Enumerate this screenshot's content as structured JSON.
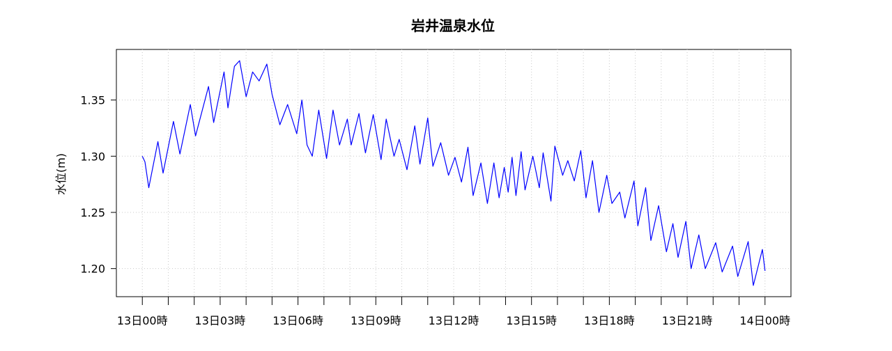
{
  "chart_data": {
    "type": "line",
    "title": "岩井温泉水位",
    "xlabel": "",
    "ylabel": "水位(m)",
    "ylim": [
      1.175,
      1.395
    ],
    "xlim": [
      -1,
      25
    ],
    "yticks": [
      1.2,
      1.25,
      1.3,
      1.35
    ],
    "ytick_labels": [
      "1.20",
      "1.25",
      "1.30",
      "1.35"
    ],
    "xticks": [
      0,
      3,
      6,
      9,
      12,
      15,
      18,
      21,
      24
    ],
    "xtick_labels": [
      "13日00時",
      "13日03時",
      "13日06時",
      "13日09時",
      "13日12時",
      "13日15時",
      "13日18時",
      "13日21時",
      "14日00時"
    ],
    "minor_xticks": [
      1,
      2,
      4,
      5,
      7,
      8,
      10,
      11,
      13,
      14,
      16,
      17,
      19,
      20,
      22,
      23
    ],
    "grid": true,
    "series": [
      {
        "color": "#0000ff",
        "x": [
          0,
          0.1,
          0.25,
          0.6,
          0.8,
          1.2,
          1.45,
          1.85,
          2.05,
          2.55,
          2.75,
          3.15,
          3.3,
          3.55,
          3.75,
          4.0,
          4.25,
          4.5,
          4.8,
          5.0,
          5.3,
          5.6,
          5.95,
          6.15,
          6.35,
          6.55,
          6.8,
          7.1,
          7.35,
          7.6,
          7.9,
          8.05,
          8.35,
          8.6,
          8.9,
          9.2,
          9.4,
          9.7,
          9.9,
          10.2,
          10.5,
          10.7,
          11.0,
          11.2,
          11.5,
          11.8,
          12.05,
          12.3,
          12.55,
          12.75,
          13.05,
          13.3,
          13.55,
          13.75,
          13.95,
          14.1,
          14.25,
          14.4,
          14.6,
          14.75,
          15.05,
          15.3,
          15.45,
          15.75,
          15.9,
          16.2,
          16.4,
          16.65,
          16.9,
          17.1,
          17.35,
          17.6,
          17.9,
          18.1,
          18.4,
          18.6,
          18.95,
          19.1,
          19.4,
          19.6,
          19.9,
          20.2,
          20.45,
          20.65,
          20.95,
          21.15,
          21.45,
          21.7,
          22.1,
          22.35,
          22.75,
          22.95,
          23.35,
          23.55,
          23.9,
          24.0
        ],
        "y": [
          1.3,
          1.295,
          1.272,
          1.313,
          1.285,
          1.331,
          1.302,
          1.346,
          1.318,
          1.362,
          1.33,
          1.375,
          1.343,
          1.38,
          1.385,
          1.353,
          1.375,
          1.367,
          1.382,
          1.355,
          1.328,
          1.346,
          1.32,
          1.35,
          1.31,
          1.3,
          1.341,
          1.298,
          1.341,
          1.31,
          1.333,
          1.31,
          1.338,
          1.303,
          1.337,
          1.297,
          1.333,
          1.3,
          1.315,
          1.288,
          1.327,
          1.293,
          1.334,
          1.291,
          1.312,
          1.283,
          1.299,
          1.277,
          1.308,
          1.265,
          1.294,
          1.258,
          1.294,
          1.263,
          1.29,
          1.268,
          1.299,
          1.265,
          1.304,
          1.27,
          1.3,
          1.272,
          1.303,
          1.26,
          1.309,
          1.283,
          1.296,
          1.278,
          1.305,
          1.263,
          1.296,
          1.25,
          1.283,
          1.258,
          1.268,
          1.245,
          1.278,
          1.238,
          1.272,
          1.225,
          1.256,
          1.215,
          1.24,
          1.21,
          1.242,
          1.2,
          1.23,
          1.2,
          1.223,
          1.197,
          1.22,
          1.193,
          1.224,
          1.185,
          1.217,
          1.198
        ]
      }
    ]
  }
}
